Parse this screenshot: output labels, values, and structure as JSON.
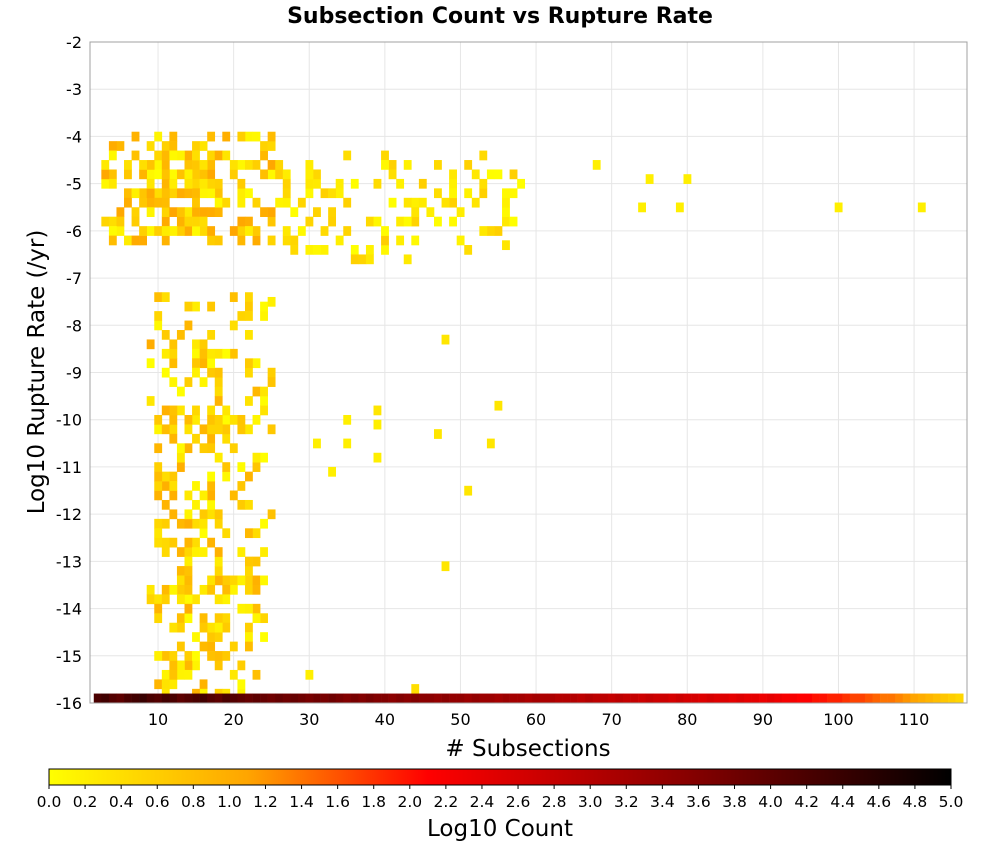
{
  "chart_data": {
    "type": "heatmap",
    "title": "Subsection Count vs Rupture Rate",
    "xlabel": "# Subsections",
    "ylabel": "Log10 Rupture Rate (/yr)",
    "xlim": [
      1,
      117
    ],
    "ylim": [
      -16,
      -2
    ],
    "x_ticks": [
      "10",
      "20",
      "30",
      "40",
      "50",
      "60",
      "70",
      "80",
      "90",
      "100",
      "110"
    ],
    "y_ticks": [
      "-2",
      "-3",
      "-4",
      "-5",
      "-6",
      "-7",
      "-8",
      "-9",
      "-10",
      "-11",
      "-12",
      "-13",
      "-14",
      "-15",
      "-16"
    ],
    "grid": true,
    "cell_width_subsections": 1,
    "cell_height_log10": 0.2,
    "colorbar": {
      "label": "Log10 Count",
      "min": 0.0,
      "max": 5.0,
      "ticks": [
        "0.0",
        "0.2",
        "0.4",
        "0.6",
        "0.8",
        "1.0",
        "1.2",
        "1.4",
        "1.6",
        "1.8",
        "2.0",
        "2.2",
        "2.4",
        "2.6",
        "2.8",
        "3.0",
        "3.2",
        "3.4",
        "3.6",
        "3.8",
        "4.0",
        "4.2",
        "4.4",
        "4.6",
        "4.8",
        "5.0"
      ],
      "colors": [
        "#ffff00",
        "#ffa500",
        "#ff0000",
        "#8b0000",
        "#000000"
      ]
    },
    "dense_region": {
      "x_range": [
        2,
        116
      ],
      "y": -15.9,
      "values": [
        4.2,
        4.3,
        4.1,
        4.0,
        4.2,
        4.3,
        4.4,
        4.2,
        4.1,
        4.3,
        4.2,
        4.0,
        4.1,
        4.2,
        4.3,
        4.1,
        4.0,
        4.2,
        4.1,
        4.0,
        3.9,
        4.0,
        3.9,
        3.8,
        3.9,
        3.8,
        3.9,
        3.8,
        3.7,
        3.8,
        3.7,
        3.8,
        3.7,
        3.6,
        3.7,
        3.6,
        3.7,
        3.6,
        3.6,
        3.5,
        3.6,
        3.5,
        3.6,
        3.5,
        3.5,
        3.4,
        3.5,
        3.4,
        3.4,
        3.3,
        3.4,
        3.3,
        3.3,
        3.2,
        3.3,
        3.2,
        3.2,
        3.1,
        3.2,
        3.1,
        3.1,
        3.0,
        3.0,
        3.0,
        2.9,
        3.0,
        2.9,
        2.9,
        2.8,
        2.9,
        2.8,
        2.8,
        2.7,
        2.8,
        2.7,
        2.7,
        2.6,
        2.7,
        2.6,
        2.6,
        2.5,
        2.6,
        2.5,
        2.5,
        2.4,
        2.5,
        2.4,
        2.4,
        2.3,
        2.4,
        2.3,
        2.2,
        2.2,
        2.1,
        2.1,
        2.0,
        2.0,
        1.9,
        1.9,
        1.8,
        1.7,
        1.7,
        1.6,
        1.5,
        1.4,
        1.4,
        1.3,
        1.2,
        1.1,
        1.0,
        0.9,
        0.8,
        0.7,
        0.6,
        0.5
      ]
    },
    "clusters": [
      {
        "x": [
          9,
          25
        ],
        "y": [
          -16,
          -7.4
        ],
        "n": 200,
        "max": 1.0
      },
      {
        "x": [
          10,
          19
        ],
        "y": [
          -16,
          -8
        ],
        "n": 120,
        "max": 1.0
      },
      {
        "x": [
          3,
          26
        ],
        "y": [
          -6.2,
          -3.9
        ],
        "n": 170,
        "max": 1.1
      },
      {
        "x": [
          8,
          18
        ],
        "y": [
          -5.6,
          -4.3
        ],
        "n": 60,
        "max": 1.1
      },
      {
        "x": [
          26,
          58
        ],
        "y": [
          -6.6,
          -4.4
        ],
        "n": 120,
        "max": 0.6
      }
    ],
    "cells": [
      {
        "x": 68,
        "y": -4.6,
        "v": 0.2
      },
      {
        "x": 75,
        "y": -4.9,
        "v": 0.2
      },
      {
        "x": 80,
        "y": -4.9,
        "v": 0.2
      },
      {
        "x": 74,
        "y": -5.5,
        "v": 0.2
      },
      {
        "x": 79,
        "y": -5.5,
        "v": 0.2
      },
      {
        "x": 100,
        "y": -5.5,
        "v": 0.2
      },
      {
        "x": 111,
        "y": -5.5,
        "v": 0.2
      },
      {
        "x": 48,
        "y": -8.3,
        "v": 0.3
      },
      {
        "x": 55,
        "y": -9.7,
        "v": 0.3
      },
      {
        "x": 47,
        "y": -10.3,
        "v": 0.3
      },
      {
        "x": 54,
        "y": -10.5,
        "v": 0.3
      },
      {
        "x": 51,
        "y": -11.5,
        "v": 0.3
      },
      {
        "x": 48,
        "y": -13.1,
        "v": 0.3
      },
      {
        "x": 44,
        "y": -15.7,
        "v": 0.4
      },
      {
        "x": 30,
        "y": -15.4,
        "v": 0.2
      },
      {
        "x": 35,
        "y": -10.0,
        "v": 0.2
      },
      {
        "x": 35,
        "y": -10.5,
        "v": 0.2
      },
      {
        "x": 39,
        "y": -9.8,
        "v": 0.3
      },
      {
        "x": 39,
        "y": -10.1,
        "v": 0.2
      },
      {
        "x": 39,
        "y": -10.8,
        "v": 0.2
      },
      {
        "x": 31,
        "y": -10.5,
        "v": 0.2
      },
      {
        "x": 33,
        "y": -11.1,
        "v": 0.2
      },
      {
        "x": 25,
        "y": -7.5,
        "v": 0.2
      },
      {
        "x": 56,
        "y": -6.3,
        "v": 0.3
      }
    ]
  }
}
